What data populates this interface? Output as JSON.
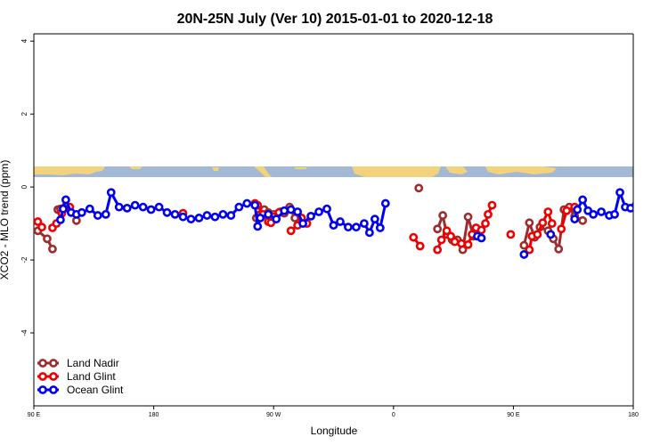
{
  "chart_data": {
    "type": "line",
    "title": "20N-25N July (Ver 10)   2015-01-01 to 2020-12-18",
    "xlabel": "Longitude",
    "ylabel": "XCO2 - MLO trend (ppm)",
    "xlim": [
      90,
      540
    ],
    "ylim": [
      -6,
      4.2
    ],
    "x_ticks": [
      {
        "value": 90,
        "label": "90 E"
      },
      {
        "value": 180,
        "label": "180"
      },
      {
        "value": 270,
        "label": "90 W"
      },
      {
        "value": 360,
        "label": "0"
      },
      {
        "value": 450,
        "label": "90 E"
      },
      {
        "value": 540,
        "label": "180"
      }
    ],
    "y_ticks": [
      -4,
      -2,
      0,
      2,
      4
    ],
    "legend_position": "bottom-left",
    "grid": false,
    "map_strip": {
      "y_range": [
        0.3,
        0.6
      ],
      "ocean_color": "#a3b8d4",
      "land_color": "#f2d27a"
    },
    "series": [
      {
        "name": "Land Nadir",
        "color": "#9b2d2d",
        "segments": [
          [
            [
              93,
              -1.2
            ],
            [
              100,
              -1.42
            ],
            [
              104,
              -1.7
            ]
          ],
          [
            [
              108,
              -0.62
            ],
            [
              110,
              -0.6
            ],
            [
              114,
              -0.58
            ]
          ],
          [
            [
              122,
              -0.92
            ]
          ],
          [
            [
              257,
              -0.85
            ],
            [
              260,
              -0.75
            ],
            [
              263,
              -0.62
            ],
            [
              266,
              -0.7
            ],
            [
              268,
              -0.9
            ],
            [
              270,
              -0.75
            ],
            [
              275,
              -0.68
            ],
            [
              278,
              -0.72
            ],
            [
              282,
              -0.55
            ],
            [
              286,
              -0.85
            ]
          ],
          [
            [
              379,
              -0.03
            ]
          ],
          [
            [
              393,
              -1.15
            ],
            [
              397,
              -0.78
            ],
            [
              400,
              -1.3
            ],
            [
              404,
              -1.45
            ],
            [
              408,
              -1.45
            ],
            [
              412,
              -1.72
            ],
            [
              416,
              -0.82
            ],
            [
              420,
              -1.35
            ],
            [
              424,
              -1.2
            ]
          ],
          [
            [
              458,
              -1.6
            ],
            [
              462,
              -0.98
            ],
            [
              466,
              -1.38
            ],
            [
              470,
              -1.1
            ],
            [
              476,
              -1.2
            ],
            [
              480,
              -1.42
            ],
            [
              484,
              -1.7
            ],
            [
              488,
              -0.62
            ],
            [
              492,
              -0.55
            ],
            [
              496,
              -0.8
            ],
            [
              502,
              -0.92
            ]
          ]
        ]
      },
      {
        "name": "Land Glint",
        "color": "#ee0000",
        "segments": [
          [
            [
              93,
              -0.95
            ],
            [
              96,
              -1.1
            ]
          ],
          [
            [
              104,
              -1.12
            ],
            [
              107,
              -1.0
            ],
            [
              111,
              -0.72
            ],
            [
              114,
              -0.52
            ],
            [
              117,
              -0.55
            ]
          ],
          [
            [
              202,
              -0.72
            ]
          ],
          [
            [
              256,
              -0.45
            ],
            [
              258,
              -0.5
            ],
            [
              262,
              -0.75
            ],
            [
              266,
              -0.95
            ],
            [
              268,
              -0.98
            ],
            [
              270,
              -0.82
            ],
            [
              274,
              -0.7
            ]
          ],
          [
            [
              283,
              -1.2
            ],
            [
              288,
              -1.05
            ],
            [
              291,
              -0.85
            ],
            [
              295,
              -1.0
            ]
          ],
          [
            [
              375,
              -1.38
            ],
            [
              380,
              -1.62
            ]
          ],
          [
            [
              393,
              -1.72
            ],
            [
              396,
              -1.45
            ],
            [
              400,
              -1.2
            ],
            [
              403,
              -1.35
            ],
            [
              406,
              -1.5
            ],
            [
              411,
              -1.55
            ],
            [
              416,
              -1.58
            ],
            [
              419,
              -1.3
            ],
            [
              422,
              -1.12
            ],
            [
              426,
              -1.18
            ],
            [
              429,
              -1.0
            ],
            [
              431,
              -0.75
            ],
            [
              434,
              -0.5
            ]
          ],
          [
            [
              448,
              -1.3
            ]
          ],
          [
            [
              462,
              -1.72
            ],
            [
              464,
              -1.35
            ],
            [
              468,
              -1.3
            ],
            [
              472,
              -0.98
            ],
            [
              476,
              -0.68
            ],
            [
              479,
              -1.0
            ]
          ],
          [
            [
              486,
              -1.15
            ],
            [
              490,
              -0.65
            ],
            [
              496,
              -0.55
            ]
          ]
        ]
      },
      {
        "name": "Ocean Glint",
        "color": "#0000ee",
        "segments": [
          [
            [
              110,
              -0.9
            ],
            [
              112,
              -0.6
            ],
            [
              114,
              -0.35
            ],
            [
              118,
              -0.7
            ],
            [
              122,
              -0.75
            ],
            [
              126,
              -0.7
            ],
            [
              132,
              -0.6
            ],
            [
              138,
              -0.78
            ],
            [
              144,
              -0.75
            ],
            [
              148,
              -0.15
            ],
            [
              154,
              -0.55
            ],
            [
              160,
              -0.58
            ],
            [
              166,
              -0.5
            ],
            [
              172,
              -0.55
            ],
            [
              178,
              -0.62
            ],
            [
              184,
              -0.55
            ],
            [
              190,
              -0.7
            ],
            [
              196,
              -0.75
            ],
            [
              202,
              -0.82
            ],
            [
              208,
              -0.88
            ],
            [
              214,
              -0.85
            ],
            [
              220,
              -0.78
            ],
            [
              226,
              -0.82
            ],
            [
              232,
              -0.75
            ],
            [
              238,
              -0.78
            ],
            [
              244,
              -0.55
            ],
            [
              250,
              -0.45
            ],
            [
              256,
              -0.5
            ],
            [
              258,
              -1.08
            ],
            [
              260,
              -0.85
            ],
            [
              266,
              -0.75
            ],
            [
              272,
              -0.88
            ],
            [
              278,
              -0.65
            ],
            [
              283,
              -0.62
            ],
            [
              288,
              -0.68
            ],
            [
              292,
              -1.0
            ],
            [
              298,
              -0.8
            ],
            [
              304,
              -0.68
            ],
            [
              310,
              -0.6
            ],
            [
              315,
              -1.05
            ],
            [
              320,
              -0.95
            ],
            [
              326,
              -1.1
            ],
            [
              332,
              -1.1
            ],
            [
              338,
              -1.0
            ],
            [
              342,
              -1.25
            ],
            [
              346,
              -0.88
            ],
            [
              350,
              -1.12
            ],
            [
              354,
              -0.45
            ]
          ],
          [
            [
              423,
              -1.35
            ],
            [
              426,
              -1.4
            ]
          ],
          [
            [
              458,
              -1.85
            ]
          ],
          [
            [
              478,
              -1.3
            ]
          ],
          [
            [
              496,
              -0.88
            ],
            [
              498,
              -0.62
            ],
            [
              502,
              -0.35
            ],
            [
              506,
              -0.65
            ],
            [
              510,
              -0.75
            ],
            [
              516,
              -0.68
            ],
            [
              522,
              -0.78
            ],
            [
              526,
              -0.75
            ],
            [
              530,
              -0.15
            ],
            [
              534,
              -0.55
            ],
            [
              538,
              -0.58
            ],
            [
              542,
              -0.5
            ],
            [
              546,
              -0.55
            ],
            [
              550,
              -0.62
            ],
            [
              554,
              -0.55
            ]
          ]
        ]
      }
    ]
  }
}
